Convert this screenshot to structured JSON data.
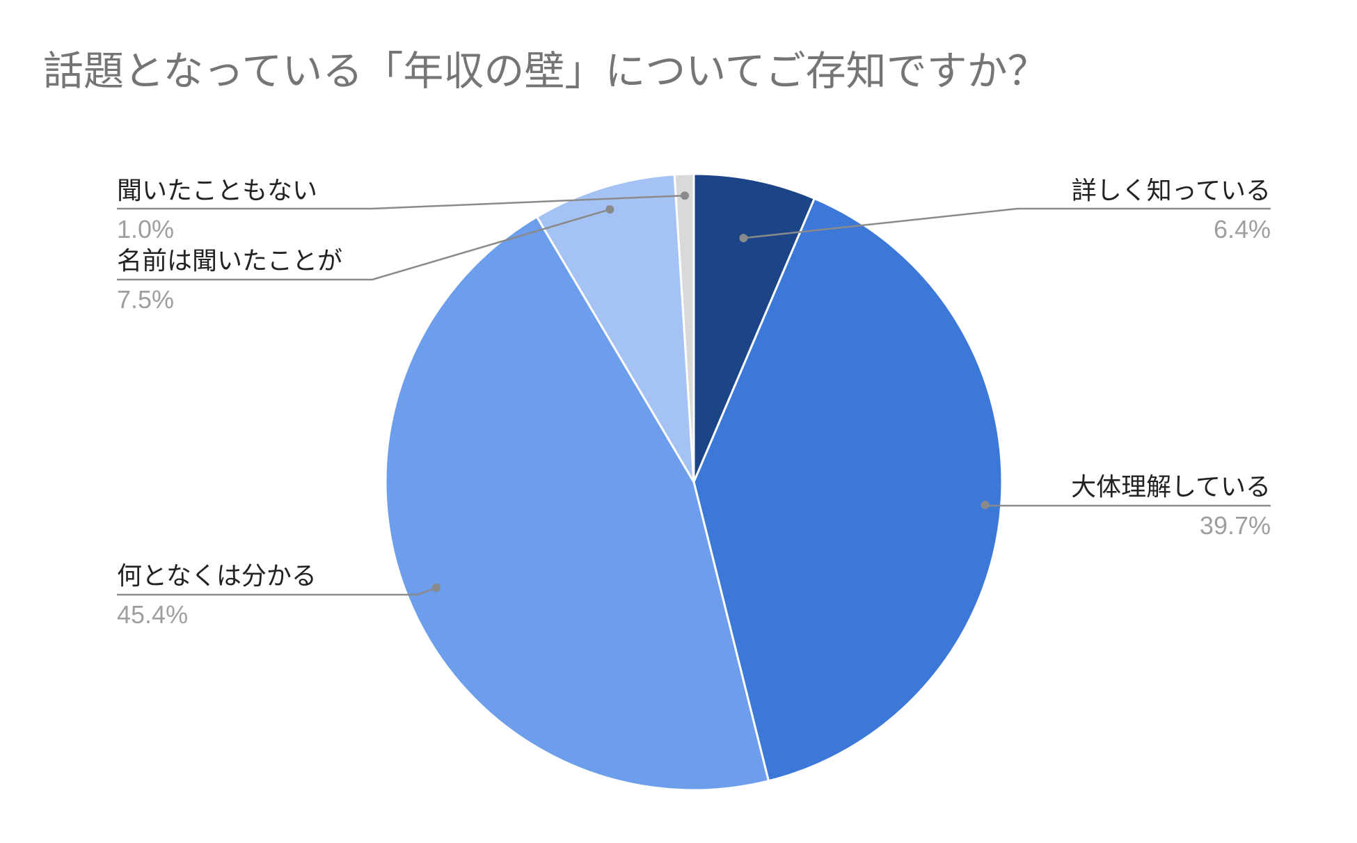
{
  "chart_data": {
    "type": "pie",
    "title": "話題となっている「年収の壁」についてご存知ですか？",
    "start_angle_deg": 0,
    "direction": "clockwise",
    "slices": [
      {
        "label": "詳しく知っている",
        "value": 6.4,
        "percent_label": "6.4%",
        "color": "#1c4587"
      },
      {
        "label": "大体理解している",
        "value": 39.7,
        "percent_label": "39.7%",
        "color": "#3c78d8"
      },
      {
        "label": "何となくは分かる",
        "value": 45.4,
        "percent_label": "45.4%",
        "color": "#6d9eeb"
      },
      {
        "label": "名前は聞いたことが",
        "value": 7.5,
        "percent_label": "7.5%",
        "color": "#a4c2f4"
      },
      {
        "label": "聞いたこともない",
        "value": 1.0,
        "percent_label": "1.0%",
        "color": "#d9d9d9"
      }
    ],
    "leader_line_color": "#8a8a8a",
    "slice_border_color": "#ffffff"
  }
}
